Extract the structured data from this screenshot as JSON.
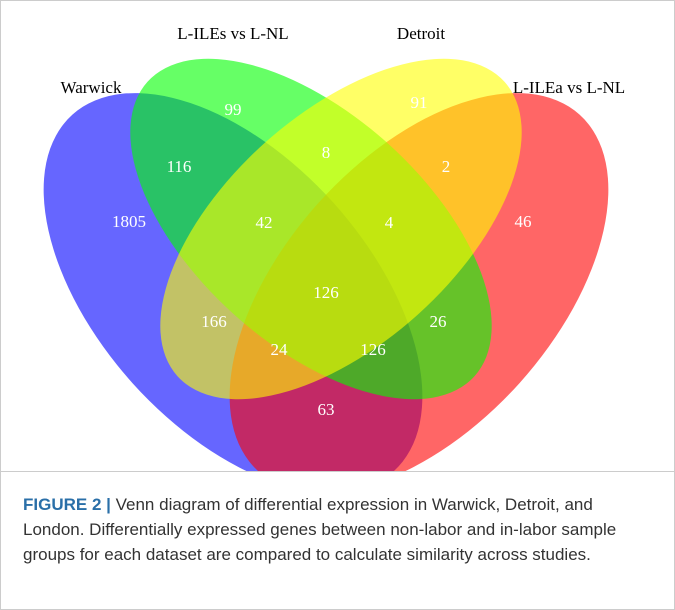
{
  "sets": [
    {
      "label": "Warwick"
    },
    {
      "label": "L-ILEs vs L-NL"
    },
    {
      "label": "Detroit"
    },
    {
      "label": "L-ILEa vs L-NL"
    }
  ],
  "regions": [
    {
      "label": "1805"
    },
    {
      "label": "99"
    },
    {
      "label": "91"
    },
    {
      "label": "46"
    },
    {
      "label": "116"
    },
    {
      "label": "8"
    },
    {
      "label": "2"
    },
    {
      "label": "42"
    },
    {
      "label": "4"
    },
    {
      "label": "126"
    },
    {
      "label": "166"
    },
    {
      "label": "26"
    },
    {
      "label": "24"
    },
    {
      "label": "126"
    },
    {
      "label": "63"
    }
  ],
  "caption": {
    "lead": "FIGURE 2 |",
    "text": "Venn diagram of differential expression in Warwick, Detroit, and London. Differentially expressed genes between non-labor and in-labor sample groups for each dataset are compared to calculate similarity across studies."
  }
}
